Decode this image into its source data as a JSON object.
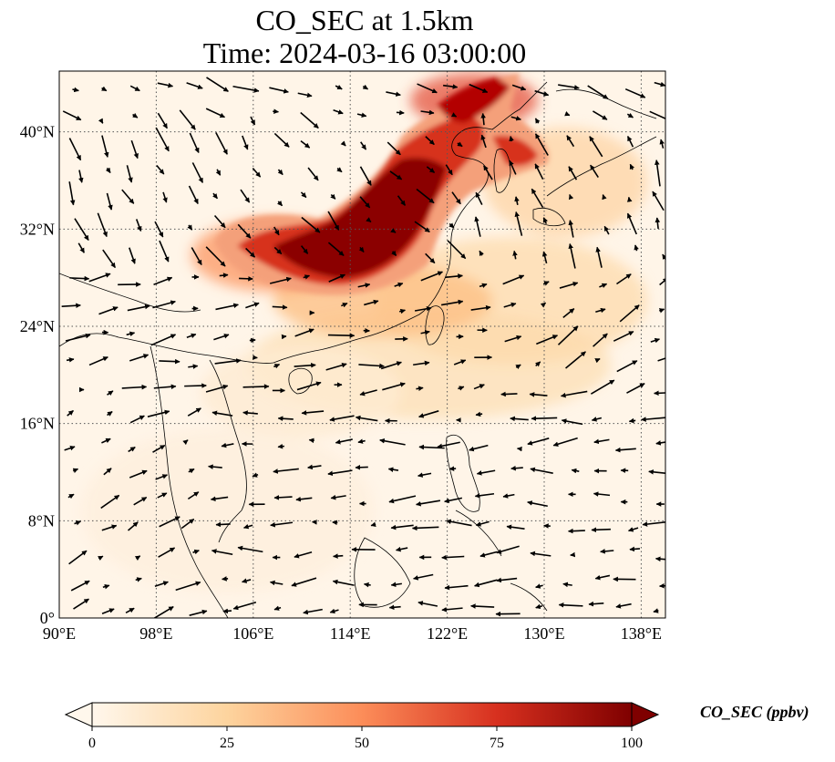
{
  "title": {
    "line1": "CO_SEC at 1.5km",
    "line2": "Time: 2024-03-16 03:00:00"
  },
  "map": {
    "extent": {
      "lon_min": 90,
      "lon_max": 140,
      "lat_min": 0,
      "lat_max": 45
    },
    "lon_ticks": [
      {
        "value": 90,
        "label": "90°E"
      },
      {
        "value": 98,
        "label": "98°E"
      },
      {
        "value": 106,
        "label": "106°E"
      },
      {
        "value": 114,
        "label": "114°E"
      },
      {
        "value": 122,
        "label": "122°E"
      },
      {
        "value": 130,
        "label": "130°E"
      },
      {
        "value": 138,
        "label": "138°E"
      }
    ],
    "lat_ticks": [
      {
        "value": 0,
        "label": "0°"
      },
      {
        "value": 8,
        "label": "8°N"
      },
      {
        "value": 16,
        "label": "16°N"
      },
      {
        "value": 24,
        "label": "24°N"
      },
      {
        "value": 32,
        "label": "32°N"
      },
      {
        "value": 40,
        "label": "40°N"
      }
    ],
    "gridlines": true,
    "colormap": "OrRd",
    "vectors": "wind arrows"
  },
  "colorbar": {
    "label": "CO_SEC (ppbv)",
    "min": 0,
    "max": 100,
    "ticks": [
      {
        "value": 0,
        "label": "0"
      },
      {
        "value": 25,
        "label": "25"
      },
      {
        "value": 50,
        "label": "50"
      },
      {
        "value": 75,
        "label": "75"
      },
      {
        "value": 100,
        "label": "100"
      }
    ],
    "extend": "both",
    "colors": [
      "#fff7ec",
      "#fdd49e",
      "#fc8d59",
      "#d7301f",
      "#7f0000"
    ]
  }
}
